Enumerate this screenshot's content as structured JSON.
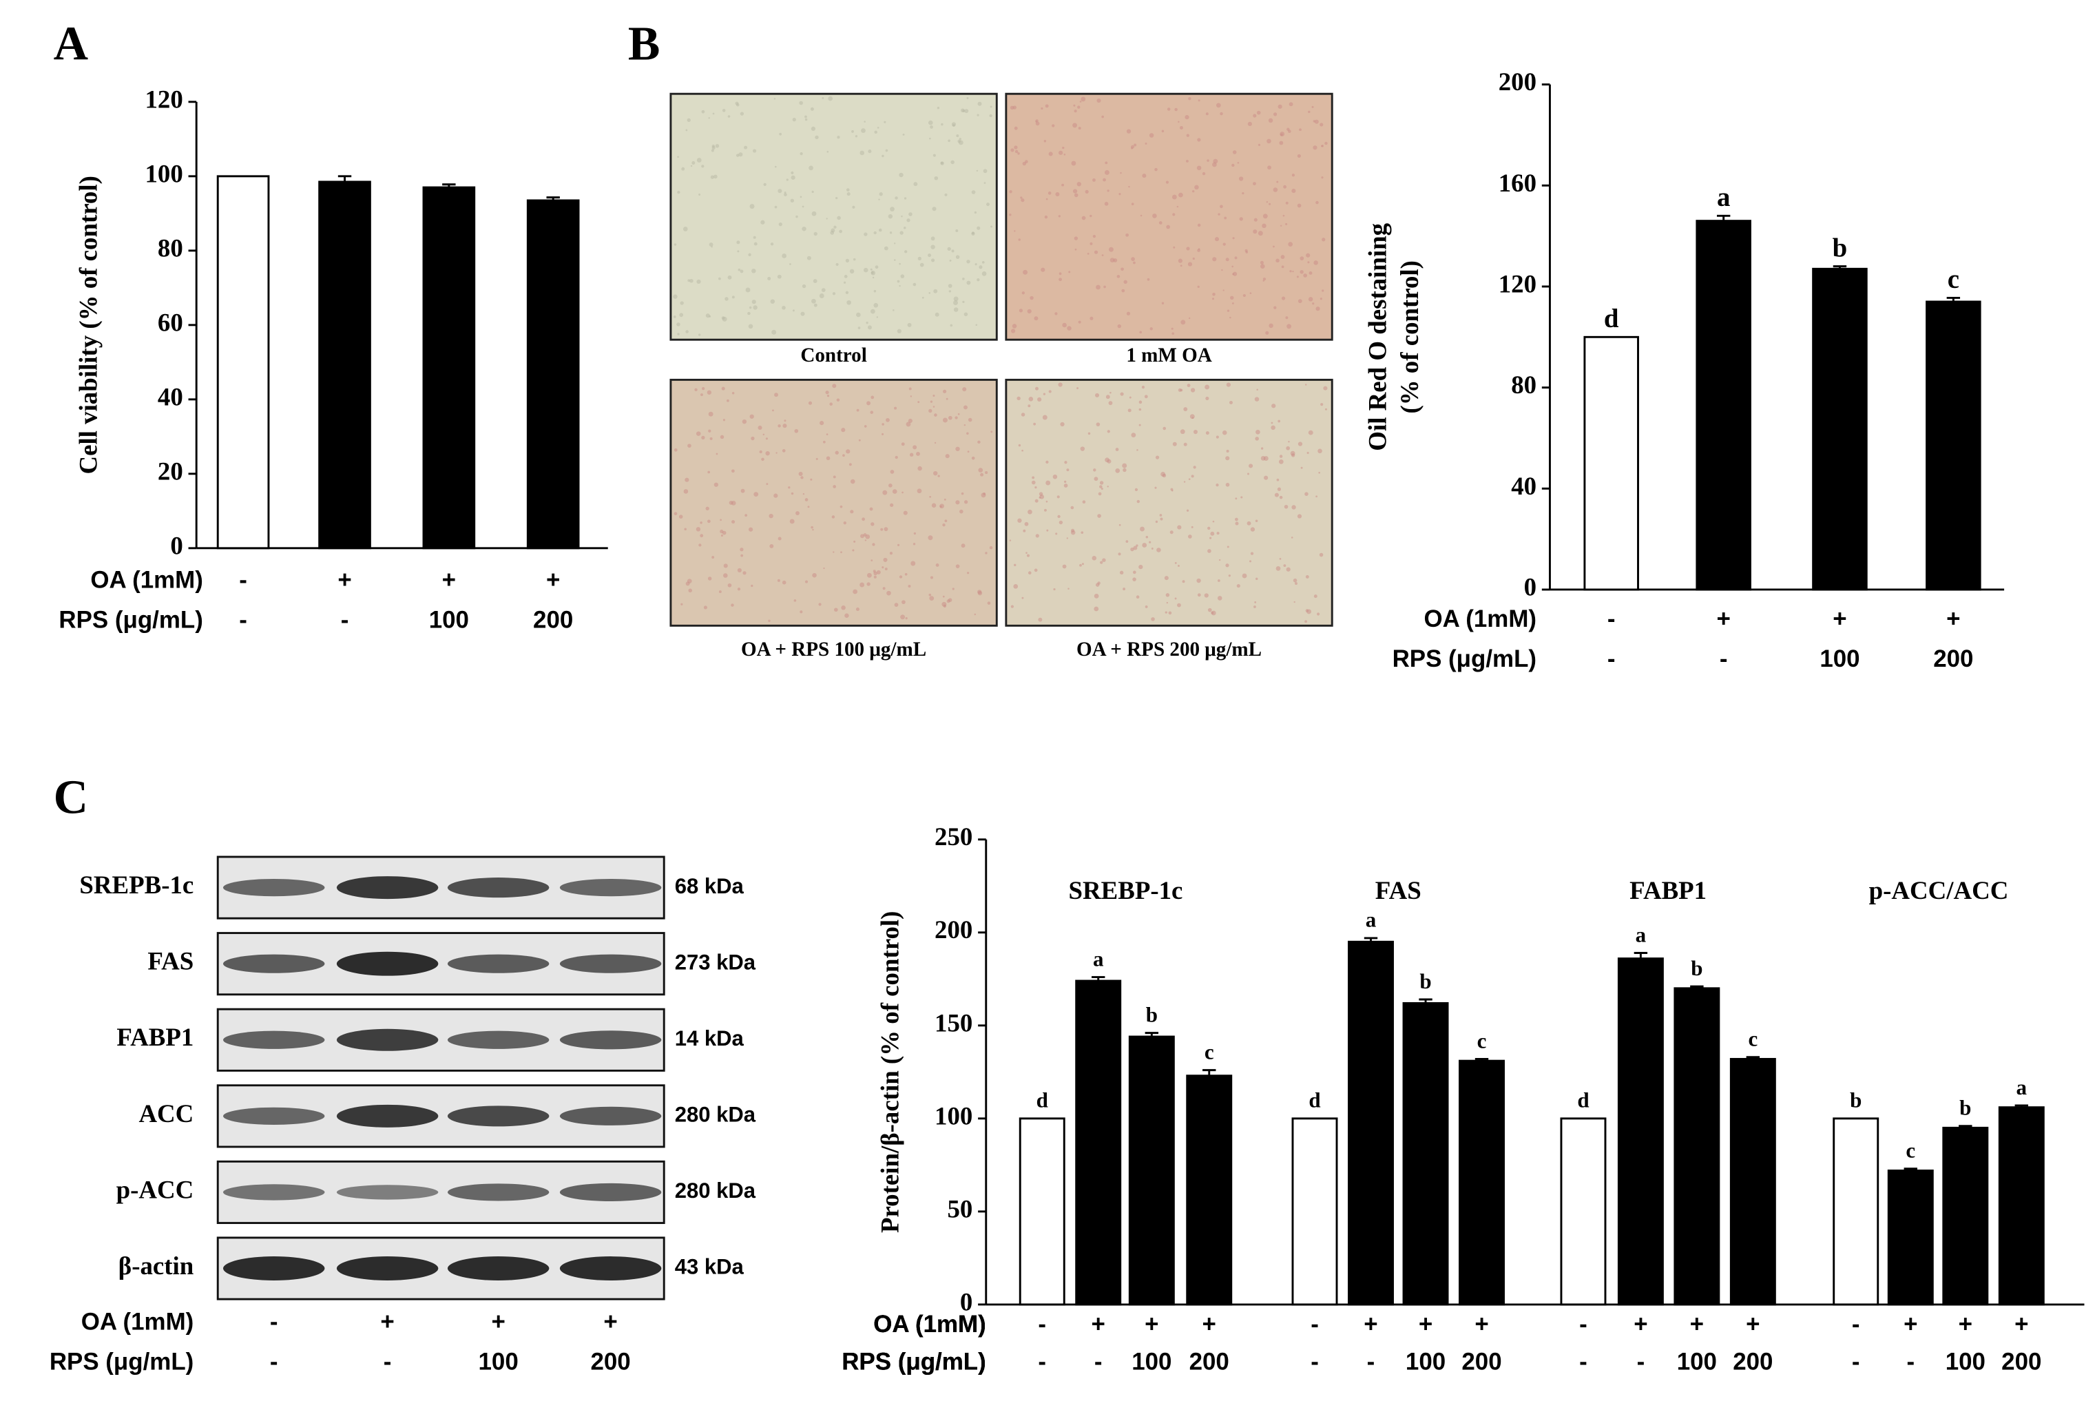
{
  "chart_data": [
    {
      "type": "bar",
      "panel_label": "A",
      "ylabel": [
        "Cell viability (% of control)"
      ],
      "categories": [
        null,
        null,
        null,
        null
      ],
      "values": [
        100,
        98.5,
        97,
        93.5
      ],
      "errors": [
        0,
        1.5,
        0.8,
        0.8
      ],
      "colors": [
        "#ffffff",
        "#000000",
        "#000000",
        "#000000"
      ],
      "ylim": [
        0,
        120
      ],
      "yticks": [
        0,
        20,
        40,
        60,
        80,
        100,
        120
      ],
      "treatments": [
        {
          "name": "OA (1mM)",
          "levels": [
            "-",
            "+",
            "+",
            "+"
          ]
        },
        {
          "name": "RPS (μg/mL)",
          "levels": [
            "-",
            "-",
            "100",
            "200"
          ]
        }
      ]
    },
    {
      "type": "bar",
      "panel_label": "B",
      "ylabel": [
        "Oil Red O destaining",
        "(% of control)"
      ],
      "categories": [
        null,
        null,
        null,
        null
      ],
      "values": [
        100,
        146,
        127,
        114
      ],
      "errors": [
        0,
        2,
        1,
        1.5
      ],
      "significance": [
        "d",
        "a",
        "b",
        "c"
      ],
      "colors": [
        "#ffffff",
        "#000000",
        "#000000",
        "#000000"
      ],
      "ylim": [
        0,
        200
      ],
      "yticks": [
        0,
        40,
        80,
        120,
        160,
        200
      ],
      "treatments": [
        {
          "name": "OA (1mM)",
          "levels": [
            "-",
            "+",
            "+",
            "+"
          ]
        },
        {
          "name": "RPS (μg/mL)",
          "levels": [
            "-",
            "-",
            "100",
            "200"
          ]
        }
      ]
    },
    {
      "type": "grouped_bar",
      "ylabel": [
        "Protein/β-actin (% of control)"
      ],
      "groups": [
        {
          "name": "SREBP-1c",
          "values": [
            100,
            174,
            144,
            123
          ],
          "errors": [
            0,
            2,
            2,
            3
          ],
          "significance": [
            "d",
            "a",
            "b",
            "c"
          ]
        },
        {
          "name": "FAS",
          "values": [
            100,
            195,
            162,
            131
          ],
          "errors": [
            0,
            2,
            2,
            1
          ],
          "significance": [
            "d",
            "a",
            "b",
            "c"
          ]
        },
        {
          "name": "FABP1",
          "values": [
            100,
            186,
            170,
            132
          ],
          "errors": [
            0,
            3,
            1,
            1
          ],
          "significance": [
            "d",
            "a",
            "b",
            "c"
          ]
        },
        {
          "name": "p-ACC/ACC",
          "values": [
            100,
            72,
            95,
            106
          ],
          "errors": [
            0,
            1,
            1,
            1
          ],
          "significance": [
            "b",
            "c",
            "b",
            "a"
          ]
        }
      ],
      "colors": [
        "#ffffff",
        "#000000",
        "#000000",
        "#000000"
      ],
      "ylim": [
        0,
        250
      ],
      "yticks": [
        0,
        50,
        100,
        150,
        200,
        250
      ],
      "treatments": [
        {
          "name": "OA (1mM)",
          "levels": [
            "-",
            "+",
            "+",
            "+"
          ]
        },
        {
          "name": "RPS (μg/mL)",
          "levels": [
            "-",
            "-",
            "100",
            "200"
          ]
        }
      ]
    }
  ],
  "micrographs": {
    "labels": [
      "Control",
      "1 mM OA",
      "OA + RPS 100 μg/mL",
      "OA + RPS 200 μg/mL"
    ]
  },
  "western_blot": {
    "panel_label": "C",
    "proteins": [
      "SREPB-1c",
      "FAS",
      "FABP1",
      "ACC",
      "p-ACC",
      "β-actin"
    ],
    "sizes": [
      "68 kDa",
      "273 kDa",
      "14 kDa",
      "280 kDa",
      "280 kDa",
      "43 kDa"
    ],
    "treatments": [
      {
        "name": "OA (1mM)",
        "levels": [
          "-",
          "+",
          "+",
          "+"
        ]
      },
      {
        "name": "RPS (μg/mL)",
        "levels": [
          "-",
          "-",
          "100",
          "200"
        ]
      }
    ]
  }
}
